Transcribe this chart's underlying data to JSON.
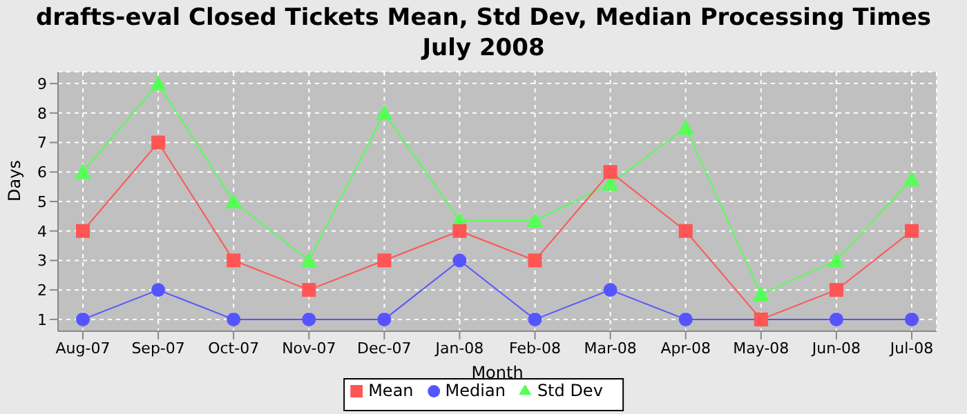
{
  "chart_data": {
    "type": "line",
    "title": "drafts-eval Closed Tickets Mean, Std Dev, Median Processing Times July 2008",
    "xlabel": "Month",
    "ylabel": "Days",
    "categories": [
      "Aug-07",
      "Sep-07",
      "Oct-07",
      "Nov-07",
      "Dec-07",
      "Jan-08",
      "Feb-08",
      "Mar-08",
      "Apr-08",
      "May-08",
      "Jun-08",
      "Jul-08"
    ],
    "series": [
      {
        "name": "Mean",
        "color": "#ff5555",
        "marker": "square",
        "values": [
          4,
          7,
          3,
          2,
          3,
          4,
          3,
          6,
          4,
          1,
          2,
          4
        ]
      },
      {
        "name": "Median",
        "color": "#5555ff",
        "marker": "circle",
        "values": [
          1,
          2,
          1,
          1,
          1,
          3,
          1,
          2,
          1,
          1,
          1,
          1
        ]
      },
      {
        "name": "Std Dev",
        "color": "#55ff55",
        "marker": "triangle",
        "values": [
          6,
          9,
          5,
          3,
          8,
          4.35,
          4.35,
          5.6,
          7.5,
          1.85,
          3,
          5.75
        ]
      }
    ],
    "ylim": [
      0.6,
      9.4
    ],
    "yticks": [
      1,
      2,
      3,
      4,
      5,
      6,
      7,
      8,
      9
    ],
    "grid": true,
    "legend": "bottom"
  }
}
